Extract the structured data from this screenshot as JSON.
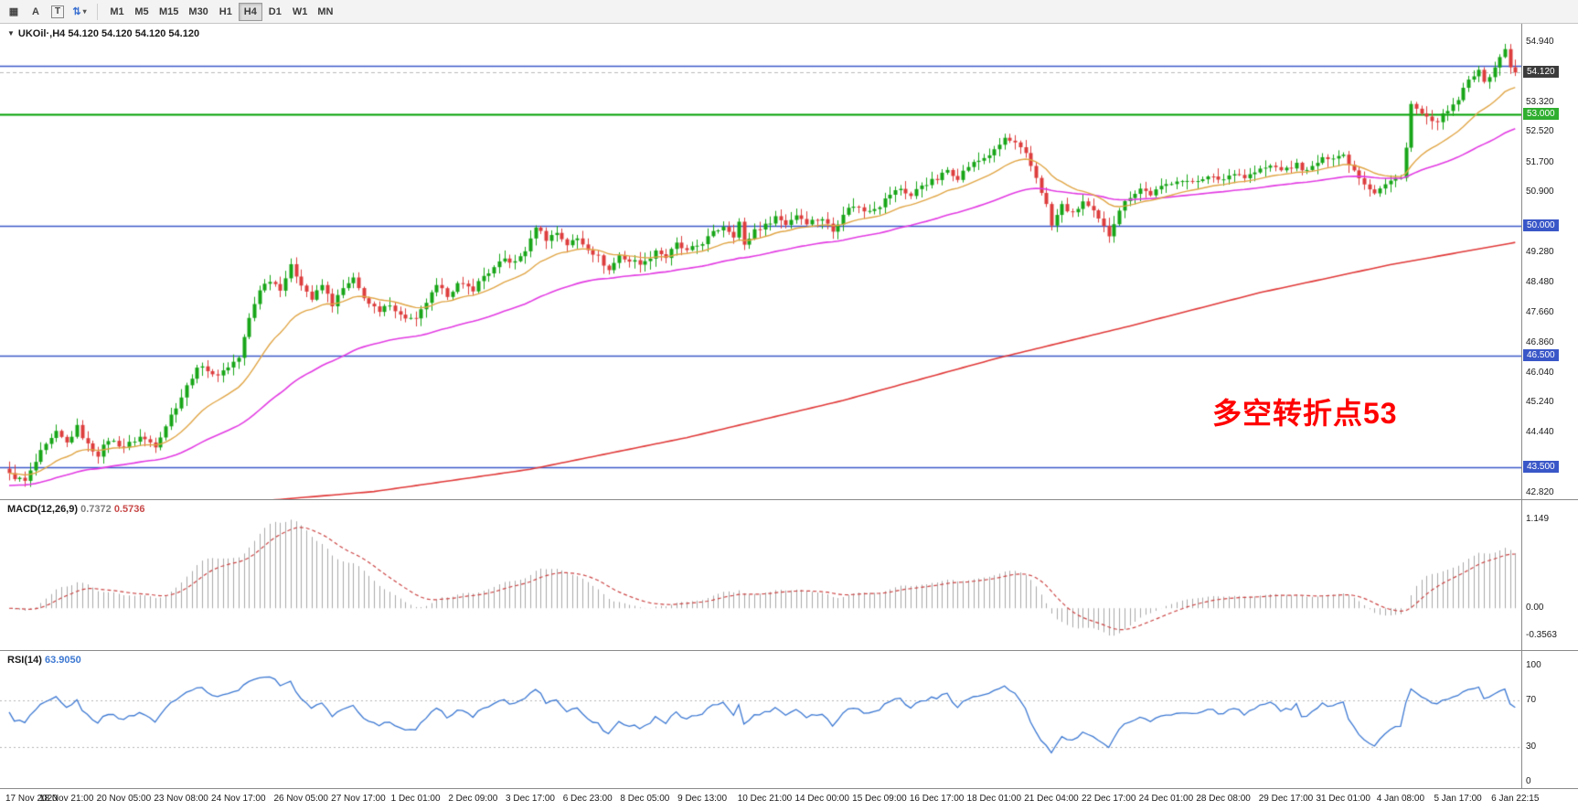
{
  "toolbar": {
    "left_icons": [
      {
        "name": "grid-icon",
        "glyph": "▦"
      },
      {
        "name": "text-annotation-icon",
        "glyph": "A"
      },
      {
        "name": "text-box-icon",
        "glyph": "T"
      },
      {
        "name": "indicators-dropdown-icon",
        "glyph": "⇅"
      },
      {
        "name": "dropdown-caret-icon",
        "glyph": "▾"
      }
    ],
    "timeframes": [
      "M1",
      "M5",
      "M15",
      "M30",
      "H1",
      "H4",
      "D1",
      "W1",
      "MN"
    ],
    "active_timeframe": "H4"
  },
  "chart": {
    "symbol_triangle": "▼",
    "symbol_info": "UKOil·,H4 54.120 54.120 54.120 54.120",
    "annotation": {
      "text": "多空转折点53",
      "color": "#ff0000"
    },
    "hlines": [
      {
        "price": 54.3,
        "color": "#3a57c8",
        "width": 1.6,
        "label": null,
        "label_bg": null
      },
      {
        "price": 53.0,
        "color": "#00a000",
        "width": 2,
        "label": "53.000",
        "label_bg": "#2fae2f"
      },
      {
        "price": 50.0,
        "color": "#3a57c8",
        "width": 1.6,
        "label": "50.000",
        "label_bg": "#3a57c8"
      },
      {
        "price": 46.5,
        "color": "#3a57c8",
        "width": 1.6,
        "label": "46.500",
        "label_bg": "#3a57c8"
      },
      {
        "price": 43.5,
        "color": "#3a57c8",
        "width": 1.6,
        "label": "43.500",
        "label_bg": "#3a57c8"
      }
    ],
    "current_price": {
      "value": 54.12,
      "label": "54.120",
      "label_bg": "#3c3c3c",
      "line_color": "#b8b8b8"
    },
    "price_axis_ticks": [
      "54.940",
      "53.320",
      "52.520",
      "51.700",
      "50.900",
      "49.280",
      "48.480",
      "47.660",
      "46.860",
      "46.040",
      "45.240",
      "44.440",
      "42.820"
    ]
  },
  "macd_panel": {
    "name": "MACD(12,26,9)",
    "value_main": "0.7372",
    "value_signal": "0.5736",
    "axis": [
      "1.149",
      "0.00",
      "-0.3563"
    ],
    "histogram_color": "#a8a8a8",
    "signal_color": "#cc4444"
  },
  "rsi_panel": {
    "name": "RSI(14)",
    "value": "63.9050",
    "axis": [
      "100",
      "70",
      "30",
      "0"
    ],
    "levels": [
      70,
      30
    ],
    "line_color": "#3c78d2",
    "level_color": "#b4b4b4"
  },
  "time_axis": [
    "17 Nov 2020",
    "18 Nov 21:00",
    "20 Nov 05:00",
    "23 Nov 08:00",
    "24 Nov 17:00",
    "26 Nov 05:00",
    "27 Nov 17:00",
    "1 Dec 01:00",
    "2 Dec 09:00",
    "3 Dec 17:00",
    "6 Dec 23:00",
    "8 Dec 05:00",
    "9 Dec 13:00",
    "10 Dec 21:00",
    "14 Dec 00:00",
    "15 Dec 09:00",
    "16 Dec 17:00",
    "18 Dec 01:00",
    "21 Dec 04:00",
    "22 Dec 17:00",
    "24 Dec 01:00",
    "28 Dec 08:00",
    "29 Dec 17:00",
    "31 Dec 01:00",
    "4 Jan 08:00",
    "5 Jan 17:00",
    "6 Jan 22:15"
  ],
  "chart_data": {
    "type": "candlestick",
    "symbol": "UKOil",
    "timeframe": "H4",
    "candle_count": 290,
    "x_start": 10,
    "spacing": 5.7,
    "noise": 0.14,
    "ylim": [
      42.62,
      55.43
    ],
    "up_color": "#17a517",
    "down_color": "#dd3d3d",
    "close_anchors": [
      [
        0,
        43.3
      ],
      [
        3,
        43.12
      ],
      [
        6,
        43.9
      ],
      [
        9,
        44.42
      ],
      [
        11,
        44.15
      ],
      [
        13,
        44.58
      ],
      [
        15,
        44.1
      ],
      [
        17,
        43.85
      ],
      [
        19,
        44.25
      ],
      [
        22,
        44.05
      ],
      [
        25,
        44.32
      ],
      [
        28,
        44.1
      ],
      [
        31,
        44.9
      ],
      [
        33,
        45.4
      ],
      [
        35,
        45.95
      ],
      [
        37,
        46.28
      ],
      [
        39,
        45.95
      ],
      [
        41,
        46.1
      ],
      [
        44,
        46.45
      ],
      [
        46,
        47.5
      ],
      [
        48,
        48.3
      ],
      [
        50,
        48.55
      ],
      [
        52,
        48.32
      ],
      [
        54,
        48.9
      ],
      [
        56,
        48.45
      ],
      [
        58,
        48.02
      ],
      [
        60,
        48.4
      ],
      [
        62,
        47.88
      ],
      [
        64,
        48.3
      ],
      [
        66,
        48.55
      ],
      [
        67,
        48.3
      ],
      [
        69,
        47.9
      ],
      [
        71,
        47.65
      ],
      [
        73,
        47.92
      ],
      [
        75,
        47.58
      ],
      [
        78,
        47.45
      ],
      [
        80,
        47.95
      ],
      [
        82,
        48.35
      ],
      [
        84,
        48.15
      ],
      [
        86,
        48.42
      ],
      [
        89,
        48.3
      ],
      [
        91,
        48.65
      ],
      [
        93,
        48.85
      ],
      [
        95,
        49.1
      ],
      [
        97,
        49.0
      ],
      [
        99,
        49.35
      ],
      [
        100,
        49.6
      ],
      [
        101,
        50.0
      ],
      [
        103,
        49.65
      ],
      [
        105,
        49.82
      ],
      [
        107,
        49.5
      ],
      [
        109,
        49.65
      ],
      [
        111,
        49.4
      ],
      [
        113,
        49.15
      ],
      [
        115,
        48.8
      ],
      [
        117,
        49.2
      ],
      [
        119,
        49.05
      ],
      [
        122,
        49.0
      ],
      [
        124,
        49.35
      ],
      [
        126,
        49.15
      ],
      [
        128,
        49.5
      ],
      [
        130,
        49.3
      ],
      [
        133,
        49.55
      ],
      [
        135,
        49.8
      ],
      [
        137,
        50.0
      ],
      [
        139,
        49.75
      ],
      [
        140,
        50.1
      ],
      [
        141,
        49.45
      ],
      [
        143,
        49.9
      ],
      [
        145,
        50.0
      ],
      [
        147,
        50.25
      ],
      [
        149,
        50.05
      ],
      [
        151,
        50.3
      ],
      [
        153,
        50.1
      ],
      [
        156,
        50.2
      ],
      [
        158,
        49.85
      ],
      [
        160,
        50.35
      ],
      [
        162,
        50.55
      ],
      [
        164,
        50.4
      ],
      [
        167,
        50.55
      ],
      [
        169,
        50.85
      ],
      [
        171,
        51.0
      ],
      [
        173,
        50.8
      ],
      [
        175,
        51.1
      ],
      [
        178,
        51.25
      ],
      [
        180,
        51.5
      ],
      [
        182,
        51.3
      ],
      [
        184,
        51.6
      ],
      [
        186,
        51.75
      ],
      [
        189,
        52.0
      ],
      [
        191,
        52.35
      ],
      [
        193,
        52.2
      ],
      [
        195,
        51.9
      ],
      [
        197,
        51.3
      ],
      [
        199,
        50.55
      ],
      [
        200,
        50.0
      ],
      [
        202,
        50.55
      ],
      [
        204,
        50.3
      ],
      [
        206,
        50.65
      ],
      [
        208,
        50.35
      ],
      [
        210,
        49.95
      ],
      [
        211,
        49.75
      ],
      [
        213,
        50.45
      ],
      [
        215,
        50.8
      ],
      [
        217,
        51.0
      ],
      [
        219,
        50.85
      ],
      [
        222,
        51.1
      ],
      [
        224,
        51.25
      ],
      [
        226,
        51.15
      ],
      [
        229,
        51.3
      ],
      [
        233,
        51.25
      ],
      [
        235,
        51.45
      ],
      [
        237,
        51.3
      ],
      [
        240,
        51.5
      ],
      [
        242,
        51.6
      ],
      [
        245,
        51.5
      ],
      [
        247,
        51.65
      ],
      [
        249,
        51.45
      ],
      [
        251,
        51.7
      ],
      [
        253,
        51.85
      ],
      [
        256,
        51.9
      ],
      [
        258,
        51.5
      ],
      [
        260,
        51.15
      ],
      [
        262,
        50.9
      ],
      [
        264,
        51.1
      ],
      [
        267,
        51.35
      ],
      [
        268,
        52.1
      ],
      [
        269,
        53.25
      ],
      [
        271,
        53.0
      ],
      [
        273,
        52.75
      ],
      [
        275,
        52.95
      ],
      [
        277,
        53.2
      ],
      [
        278,
        53.4
      ],
      [
        280,
        53.9
      ],
      [
        282,
        54.25
      ],
      [
        283,
        53.8
      ],
      [
        284,
        54.05
      ],
      [
        286,
        54.5
      ],
      [
        287,
        54.75
      ],
      [
        288,
        54.3
      ],
      [
        289,
        54.12
      ]
    ],
    "ma": {
      "fast": {
        "period": 18,
        "color": "#e0a545"
      },
      "medium": {
        "period": 55,
        "seed": 43.0,
        "color": "#e23ae2"
      },
      "slow": {
        "color": "#e03838",
        "keyframes": [
          [
            0,
            42.25
          ],
          [
            40,
            42.5
          ],
          [
            70,
            42.85
          ],
          [
            100,
            43.45
          ],
          [
            130,
            44.3
          ],
          [
            160,
            45.3
          ],
          [
            190,
            46.45
          ],
          [
            215,
            47.3
          ],
          [
            240,
            48.2
          ],
          [
            265,
            48.95
          ],
          [
            289,
            49.55
          ]
        ]
      }
    },
    "macd_scale": {
      "max": 1.149,
      "min": -0.3563,
      "vmax": 1.19,
      "vmin": -0.46
    },
    "rsi_period": 14
  }
}
